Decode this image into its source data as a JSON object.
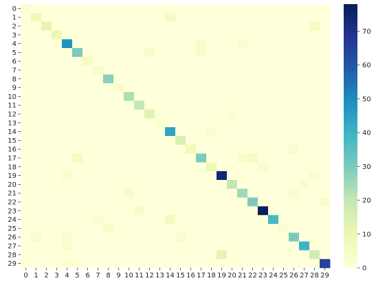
{
  "chart_data": {
    "type": "heatmap",
    "x_categories": [
      "0",
      "1",
      "2",
      "3",
      "4",
      "5",
      "6",
      "7",
      "8",
      "9",
      "10",
      "11",
      "12",
      "13",
      "14",
      "15",
      "16",
      "17",
      "18",
      "19",
      "20",
      "21",
      "22",
      "23",
      "24",
      "25",
      "26",
      "27",
      "28",
      "29"
    ],
    "y_categories": [
      "0",
      "1",
      "2",
      "3",
      "4",
      "5",
      "6",
      "7",
      "8",
      "9",
      "10",
      "11",
      "12",
      "13",
      "14",
      "15",
      "16",
      "17",
      "18",
      "19",
      "20",
      "21",
      "22",
      "23",
      "24",
      "25",
      "26",
      "27",
      "28",
      "29"
    ],
    "colorscale": "YlGnBu",
    "vmin": 0,
    "vmax": 78,
    "colorbar_ticks": [
      0,
      10,
      20,
      30,
      40,
      50,
      60,
      70
    ],
    "diagonal_values": [
      2,
      8,
      12,
      10,
      48,
      30,
      5,
      4,
      28,
      3,
      23,
      20,
      13,
      2,
      44,
      15,
      8,
      30,
      9,
      74,
      20,
      25,
      30,
      77,
      38,
      3,
      30,
      40,
      17,
      65
    ],
    "off_diagonal": [
      {
        "row": 1,
        "col": 14,
        "value": 5
      },
      {
        "row": 2,
        "col": 28,
        "value": 5
      },
      {
        "row": 4,
        "col": 17,
        "value": 4
      },
      {
        "row": 4,
        "col": 21,
        "value": 3
      },
      {
        "row": 5,
        "col": 12,
        "value": 4
      },
      {
        "row": 5,
        "col": 17,
        "value": 4
      },
      {
        "row": 12,
        "col": 20,
        "value": 2
      },
      {
        "row": 14,
        "col": 18,
        "value": 3
      },
      {
        "row": 16,
        "col": 26,
        "value": 3
      },
      {
        "row": 17,
        "col": 5,
        "value": 6
      },
      {
        "row": 17,
        "col": 21,
        "value": 4
      },
      {
        "row": 17,
        "col": 22,
        "value": 5
      },
      {
        "row": 18,
        "col": 23,
        "value": 3
      },
      {
        "row": 19,
        "col": 4,
        "value": 3
      },
      {
        "row": 19,
        "col": 28,
        "value": 3
      },
      {
        "row": 20,
        "col": 27,
        "value": 3
      },
      {
        "row": 21,
        "col": 10,
        "value": 4
      },
      {
        "row": 21,
        "col": 26,
        "value": 3
      },
      {
        "row": 22,
        "col": 29,
        "value": 3
      },
      {
        "row": 23,
        "col": 11,
        "value": 4
      },
      {
        "row": 24,
        "col": 7,
        "value": 3
      },
      {
        "row": 24,
        "col": 14,
        "value": 7
      },
      {
        "row": 25,
        "col": 8,
        "value": 4
      },
      {
        "row": 26,
        "col": 1,
        "value": 3
      },
      {
        "row": 26,
        "col": 4,
        "value": 3
      },
      {
        "row": 26,
        "col": 15,
        "value": 3
      },
      {
        "row": 27,
        "col": 4,
        "value": 3
      },
      {
        "row": 28,
        "col": 19,
        "value": 12
      },
      {
        "row": 29,
        "col": 4,
        "value": 2
      }
    ]
  }
}
